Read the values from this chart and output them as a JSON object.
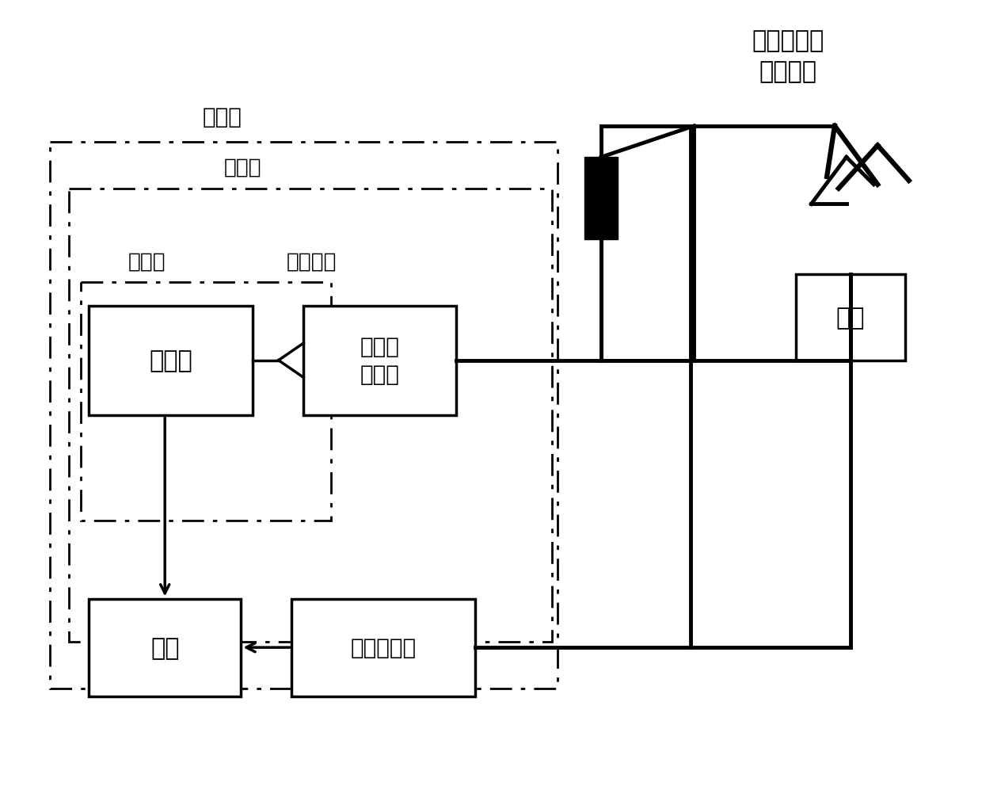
{
  "bg_color": "#ffffff",
  "labels": {
    "top_right_line1": "太阳和冠层",
    "top_right_line2": "外接光纤",
    "yuntai": "云台",
    "baiyeliang": "百叶箱",
    "fangshuixiang": "防水箱",
    "hengwenxiang": "恒温箱",
    "fenyuguangxian": "分叉光纤",
    "guangpuyi": "光谱仪",
    "guangluqiehuan1": "光路切",
    "guangluqiehuan2": "换开关",
    "diannao": "电脑",
    "yuntaikongzhiqi": "云台控制器"
  },
  "figsize": [
    12.4,
    10.12
  ],
  "dpi": 100
}
